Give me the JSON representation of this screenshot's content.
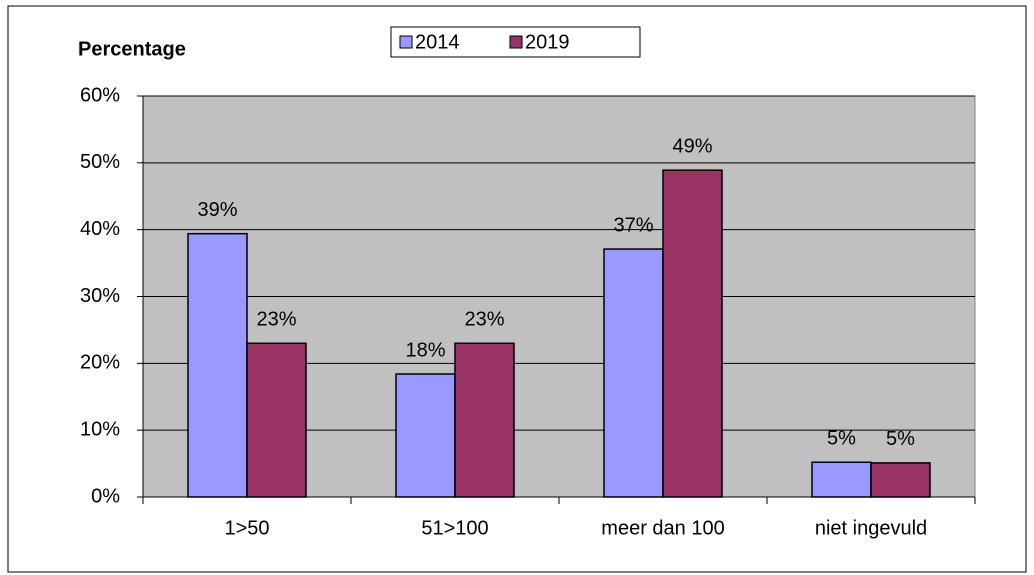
{
  "chart_data": {
    "type": "bar",
    "y_label": "Percentage",
    "categories": [
      "1>50",
      "51>100",
      "meer dan 100",
      "niet ingevuld"
    ],
    "series": [
      {
        "name": "2014",
        "color": "#9999ff",
        "values": [
          39.4,
          18.4,
          37.1,
          5.2
        ],
        "value_labels": [
          "39%",
          "18%",
          "37%",
          "5%"
        ]
      },
      {
        "name": "2019",
        "color": "#993366",
        "values": [
          23.0,
          23.0,
          48.9,
          5.1
        ],
        "value_labels": [
          "23%",
          "23%",
          "49%",
          "5%"
        ]
      }
    ],
    "ylim": [
      0,
      60
    ],
    "yticks": [
      {
        "value": 0,
        "label": "0%"
      },
      {
        "value": 10,
        "label": "10%"
      },
      {
        "value": 20,
        "label": "20%"
      },
      {
        "value": 30,
        "label": "30%"
      },
      {
        "value": 40,
        "label": "40%"
      },
      {
        "value": 50,
        "label": "50%"
      },
      {
        "value": 60,
        "label": "60%"
      }
    ],
    "grid": true,
    "legend": "top"
  }
}
